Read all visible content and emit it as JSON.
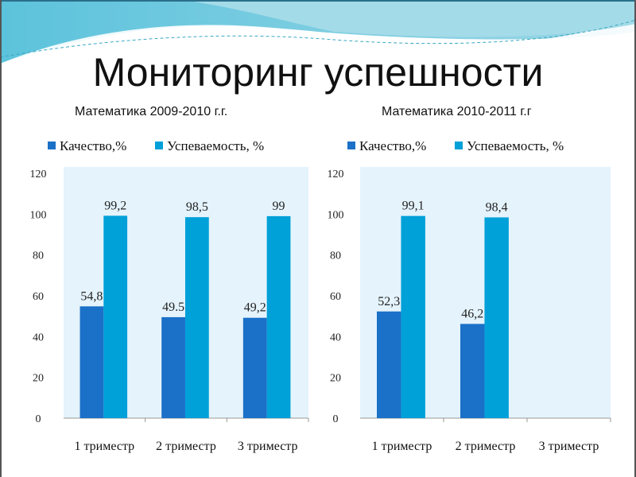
{
  "title": "Мониторинг успешности",
  "colors": {
    "quality": "#1b70c8",
    "progress": "#00a0d8",
    "plot_bg": "#e4f3fc"
  },
  "chart_data": [
    {
      "type": "bar",
      "title": "Математика  2009-2010 г.г.",
      "categories": [
        "1 триместр",
        "2 триместр",
        "3 триместр"
      ],
      "series": [
        {
          "name": "Качество,%",
          "values": [
            54.8,
            49.5,
            49.2
          ],
          "labels": [
            "54,8",
            "49.5",
            "49,2"
          ]
        },
        {
          "name": "Успеваемость, %",
          "values": [
            99.2,
            98.5,
            99
          ],
          "labels": [
            "99,2",
            "98,5",
            "99"
          ]
        }
      ],
      "ylim": [
        0,
        120
      ],
      "yticks": [
        "0",
        "20",
        "40",
        "60",
        "80",
        "100",
        "120"
      ],
      "legend": "top"
    },
    {
      "type": "bar",
      "title": "Математика 2010-2011 г.г",
      "categories": [
        "1 триместр",
        "2 триместр",
        "3 триместр"
      ],
      "series": [
        {
          "name": "Качество,%",
          "values": [
            52.3,
            46.2,
            null
          ],
          "labels": [
            "52,3",
            "46,2",
            null
          ]
        },
        {
          "name": "Успеваемость, %",
          "values": [
            99.1,
            98.4,
            null
          ],
          "labels": [
            "99,1",
            "98,4",
            null
          ]
        }
      ],
      "ylim": [
        0,
        120
      ],
      "yticks": [
        "0",
        "20",
        "40",
        "60",
        "80",
        "100",
        "120"
      ],
      "legend": "top"
    }
  ]
}
